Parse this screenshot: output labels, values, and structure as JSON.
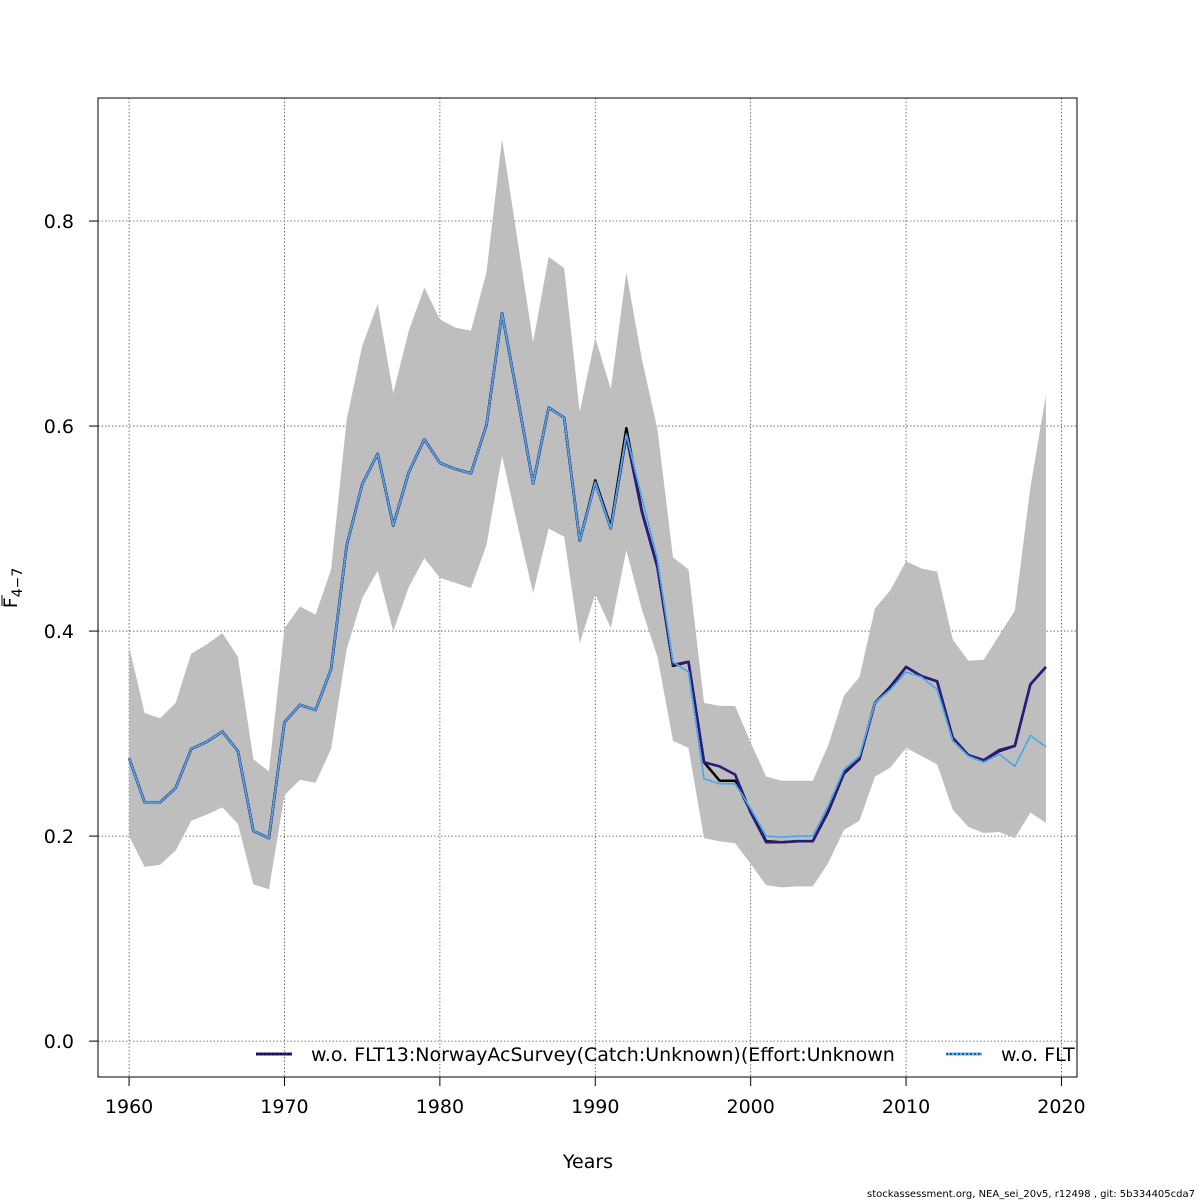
{
  "chart_data": {
    "type": "line",
    "xlabel": "Years",
    "ylabel_main": "F",
    "ylabel_sub": "4−7",
    "xlim": [
      1958,
      2021
    ],
    "ylim": [
      -0.035,
      0.92
    ],
    "xticks": [
      1960,
      1970,
      1980,
      1990,
      2000,
      2010,
      2020
    ],
    "yticks": [
      0.0,
      0.2,
      0.4,
      0.6,
      0.8
    ],
    "ytick_labels": [
      "0.0",
      "0.2",
      "0.4",
      "0.6",
      "0.8"
    ],
    "grid": true,
    "legend_placement": "bottom",
    "colors": {
      "band": "#bebebe",
      "base_line": "#000000",
      "series1": "#2b1b7a",
      "series2": "#5ab4f0"
    },
    "x": [
      1960,
      1961,
      1962,
      1963,
      1964,
      1965,
      1966,
      1967,
      1968,
      1969,
      1970,
      1971,
      1972,
      1973,
      1974,
      1975,
      1976,
      1977,
      1978,
      1979,
      1980,
      1981,
      1982,
      1983,
      1984,
      1985,
      1986,
      1987,
      1988,
      1989,
      1990,
      1991,
      1992,
      1993,
      1994,
      1995,
      1996,
      1997,
      1998,
      1999,
      2000,
      2001,
      2002,
      2003,
      2004,
      2005,
      2006,
      2007,
      2008,
      2009,
      2010,
      2011,
      2012,
      2013,
      2014,
      2015,
      2016,
      2017,
      2018,
      2019
    ],
    "band_upper": [
      0.385,
      0.32,
      0.315,
      0.33,
      0.378,
      0.387,
      0.398,
      0.375,
      0.275,
      0.263,
      0.403,
      0.424,
      0.416,
      0.46,
      0.606,
      0.678,
      0.719,
      0.632,
      0.693,
      0.735,
      0.704,
      0.696,
      0.693,
      0.75,
      0.88,
      0.781,
      0.682,
      0.765,
      0.754,
      0.614,
      0.686,
      0.636,
      0.75,
      0.665,
      0.597,
      0.472,
      0.46,
      0.33,
      0.327,
      0.327,
      0.291,
      0.258,
      0.254,
      0.254,
      0.254,
      0.289,
      0.337,
      0.355,
      0.422,
      0.44,
      0.468,
      0.461,
      0.458,
      0.392,
      0.371,
      0.372,
      0.396,
      0.42,
      0.54,
      0.63
    ],
    "band_lower": [
      0.2,
      0.17,
      0.172,
      0.186,
      0.215,
      0.221,
      0.228,
      0.212,
      0.153,
      0.148,
      0.24,
      0.255,
      0.252,
      0.285,
      0.382,
      0.432,
      0.459,
      0.4,
      0.443,
      0.471,
      0.452,
      0.447,
      0.442,
      0.484,
      0.571,
      0.503,
      0.437,
      0.5,
      0.492,
      0.388,
      0.436,
      0.403,
      0.479,
      0.421,
      0.375,
      0.293,
      0.286,
      0.198,
      0.195,
      0.193,
      0.173,
      0.152,
      0.15,
      0.151,
      0.151,
      0.174,
      0.206,
      0.215,
      0.258,
      0.267,
      0.286,
      0.278,
      0.27,
      0.226,
      0.209,
      0.203,
      0.204,
      0.198,
      0.223,
      0.213
    ],
    "series": [
      {
        "name": "",
        "style": "solid-black",
        "values": [
          0.276,
          0.233,
          0.233,
          0.247,
          0.285,
          0.292,
          0.302,
          0.283,
          0.205,
          0.198,
          0.311,
          0.328,
          0.323,
          0.363,
          0.483,
          0.543,
          0.573,
          0.503,
          0.555,
          0.587,
          0.564,
          0.558,
          0.554,
          0.601,
          0.71,
          0.628,
          0.544,
          0.618,
          0.608,
          0.488,
          0.547,
          0.502,
          0.598,
          0.517,
          0.463,
          0.366,
          0.37,
          0.272,
          0.254,
          0.254,
          0.224,
          0.195,
          0.194,
          0.195,
          0.195,
          0.224,
          0.261,
          0.275,
          0.33,
          0.346,
          0.365,
          0.356,
          0.351,
          0.296,
          0.279,
          0.274,
          0.283,
          0.288,
          0.348,
          0.365
        ]
      },
      {
        "name": "w.o. FLT13:NorwayAcSurvey(Catch:Unknown)(Effort:Unknown",
        "style": "solid-navy",
        "values": [
          0.276,
          0.233,
          0.233,
          0.247,
          0.285,
          0.292,
          0.302,
          0.283,
          0.205,
          0.198,
          0.311,
          0.328,
          0.323,
          0.363,
          0.483,
          0.543,
          0.573,
          0.503,
          0.555,
          0.587,
          0.564,
          0.558,
          0.554,
          0.601,
          0.71,
          0.628,
          0.544,
          0.618,
          0.608,
          0.488,
          0.545,
          0.5,
          0.59,
          0.516,
          0.462,
          0.367,
          0.37,
          0.272,
          0.268,
          0.26,
          0.223,
          0.194,
          0.194,
          0.195,
          0.195,
          0.225,
          0.262,
          0.275,
          0.33,
          0.345,
          0.365,
          0.356,
          0.351,
          0.296,
          0.279,
          0.274,
          0.284,
          0.288,
          0.348,
          0.365
        ]
      },
      {
        "name": "w.o. FLT",
        "style": "dotted-lightblue",
        "values": [
          0.276,
          0.233,
          0.233,
          0.247,
          0.285,
          0.292,
          0.302,
          0.283,
          0.205,
          0.198,
          0.311,
          0.328,
          0.323,
          0.363,
          0.483,
          0.543,
          0.573,
          0.503,
          0.555,
          0.587,
          0.564,
          0.558,
          0.554,
          0.601,
          0.71,
          0.628,
          0.544,
          0.618,
          0.608,
          0.488,
          0.545,
          0.5,
          0.592,
          0.53,
          0.47,
          0.37,
          0.36,
          0.256,
          0.251,
          0.251,
          0.227,
          0.2,
          0.199,
          0.2,
          0.2,
          0.23,
          0.265,
          0.278,
          0.33,
          0.343,
          0.36,
          0.355,
          0.343,
          0.293,
          0.278,
          0.272,
          0.28,
          0.268,
          0.298,
          0.287
        ]
      }
    ]
  },
  "footer": "stockassessment.org, NEA_sei_20v5, r12498 , git: 5b334405cda7"
}
